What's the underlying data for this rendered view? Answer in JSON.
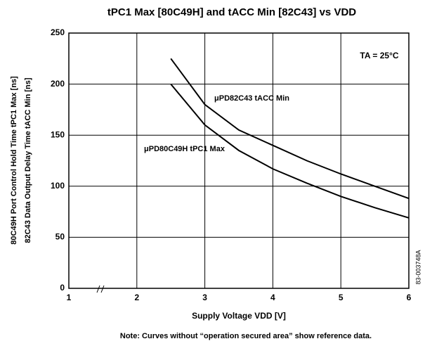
{
  "chart_data": {
    "type": "line",
    "title": "tPC1 Max [80C49H] and tACC Min [82C43] vs VDD",
    "y_label_lines": [
      "80C49H Port Control Hold Time tPC1 Max [ns]",
      "82C43 Data Output Delay Time tACC Min [ns]"
    ],
    "x_label": "Supply Voltage VDD [V]",
    "annotations": [
      "TA = 25°C",
      "83-003748A"
    ],
    "note": "Note: Curves without “operation secured area” show reference data.",
    "x": [
      2.5,
      3,
      3.5,
      4,
      4.5,
      5,
      5.5,
      6
    ],
    "series": [
      {
        "name": "μPD82C43 tACC Min",
        "color": "#000000",
        "values": [
          225,
          180,
          155,
          140,
          125,
          112,
          100,
          88
        ]
      },
      {
        "name": "μPD80C49H tPC1 Max",
        "color": "#000000",
        "values": [
          200,
          160,
          135,
          117,
          103,
          90,
          79,
          69
        ]
      }
    ],
    "xlim": [
      1,
      6
    ],
    "xticks": [
      1,
      2,
      3,
      4,
      5,
      6
    ],
    "ylim": [
      0,
      250
    ],
    "yticks": [
      0,
      50,
      100,
      150,
      200,
      250
    ],
    "grid": true
  }
}
